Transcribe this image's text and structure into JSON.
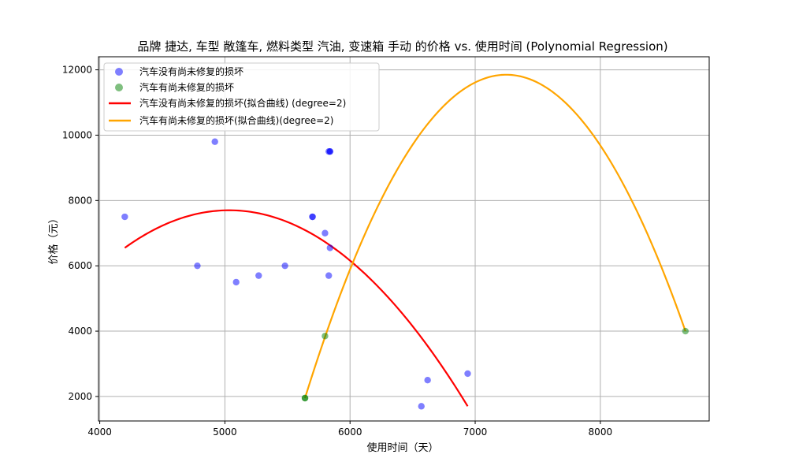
{
  "chart_data": {
    "type": "scatter",
    "title": "品牌 捷达, 车型 敞篷车, 燃料类型 汽油, 变速箱 手动 的价格 vs. 使用时间 (Polynomial Regression)",
    "xlabel": "使用时间（天）",
    "ylabel": "价格（元）",
    "xlim": [
      3990,
      8870
    ],
    "ylim": [
      1250,
      12400
    ],
    "xticks": [
      4000,
      5000,
      6000,
      7000,
      8000
    ],
    "yticks": [
      2000,
      4000,
      6000,
      8000,
      10000,
      12000
    ],
    "grid": true,
    "legend_position": "top-left",
    "scatter_series": [
      {
        "name": "汽车没有尚未修复的损坏",
        "color": "#0000ff",
        "points": [
          [
            4200,
            7500
          ],
          [
            4780,
            6000
          ],
          [
            4920,
            9800
          ],
          [
            5090,
            5500
          ],
          [
            5270,
            5700
          ],
          [
            5480,
            6000
          ],
          [
            5700,
            7500
          ],
          [
            5700,
            7500
          ],
          [
            5800,
            7000
          ],
          [
            5830,
            9500
          ],
          [
            5840,
            9500
          ],
          [
            5840,
            9500
          ],
          [
            5840,
            6550
          ],
          [
            5830,
            5700
          ],
          [
            6570,
            1700
          ],
          [
            6620,
            2500
          ],
          [
            6940,
            2700
          ]
        ]
      },
      {
        "name": "汽车有尚未修复的损坏",
        "color": "#008000",
        "points": [
          [
            5640,
            1950
          ],
          [
            5640,
            1950
          ],
          [
            5800,
            3850
          ],
          [
            8680,
            4000
          ]
        ]
      }
    ],
    "fit_series": [
      {
        "name": "汽车没有尚未修复的损坏(拟合曲线) (degree=2)",
        "color": "#ff0000",
        "degree": 2,
        "x_range": [
          4200,
          6940
        ],
        "points": [
          [
            4200,
            6550
          ],
          [
            5020,
            7700
          ],
          [
            6940,
            1700
          ]
        ]
      },
      {
        "name": "汽车有尚未修复的损坏(拟合曲线)(degree=2)",
        "color": "#ffa500",
        "degree": 2,
        "x_range": [
          5640,
          8680
        ],
        "points": [
          [
            5640,
            1950
          ],
          [
            7250,
            11850
          ],
          [
            8680,
            4000
          ]
        ]
      }
    ]
  }
}
